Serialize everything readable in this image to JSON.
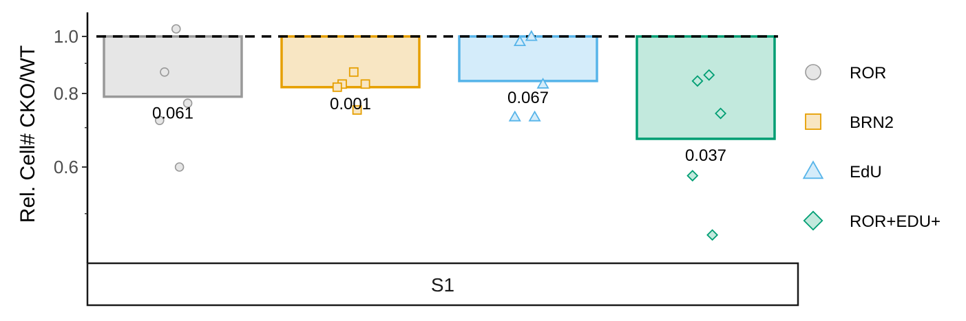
{
  "chart_data": {
    "type": "bar",
    "ylabel": "Rel. Cell# CKO/WT",
    "xlabel": "",
    "facet_label": "S1",
    "y_scale": "log",
    "ylim": [
      0.42,
      1.07
    ],
    "yticks": [
      0.6,
      0.8,
      1.0
    ],
    "ytick_labels": [
      "0.6",
      "0.8",
      "1.0"
    ],
    "reference_line": 1.0,
    "legend_position": "right",
    "categories": [
      "ROR",
      "BRN2",
      "EdU",
      "ROR+EDU+"
    ],
    "series": [
      {
        "name": "ROR",
        "shape": "circle",
        "color": "#999999",
        "fill": "#e6e6e6",
        "bar_value": 0.79,
        "p_value": "0.061",
        "points": [
          1.03,
          0.87,
          0.77,
          0.72,
          0.6
        ]
      },
      {
        "name": "BRN2",
        "shape": "square",
        "color": "#E69F00",
        "fill": "#f8e6c3",
        "bar_value": 0.82,
        "p_value": "0.001",
        "points": [
          0.87,
          0.83,
          0.83,
          0.82,
          0.75
        ]
      },
      {
        "name": "EdU",
        "shape": "triangle",
        "color": "#56B4E9",
        "fill": "#d4ecfa",
        "bar_value": 0.84,
        "p_value": "0.067",
        "points": [
          1.0,
          0.98,
          0.83,
          0.73,
          0.73
        ]
      },
      {
        "name": "ROR+EDU+",
        "shape": "diamond",
        "color": "#009E73",
        "fill": "#c2e9dd",
        "bar_value": 0.67,
        "p_value": "0.037",
        "points": [
          0.86,
          0.84,
          0.74,
          0.58,
          0.46
        ]
      }
    ]
  }
}
